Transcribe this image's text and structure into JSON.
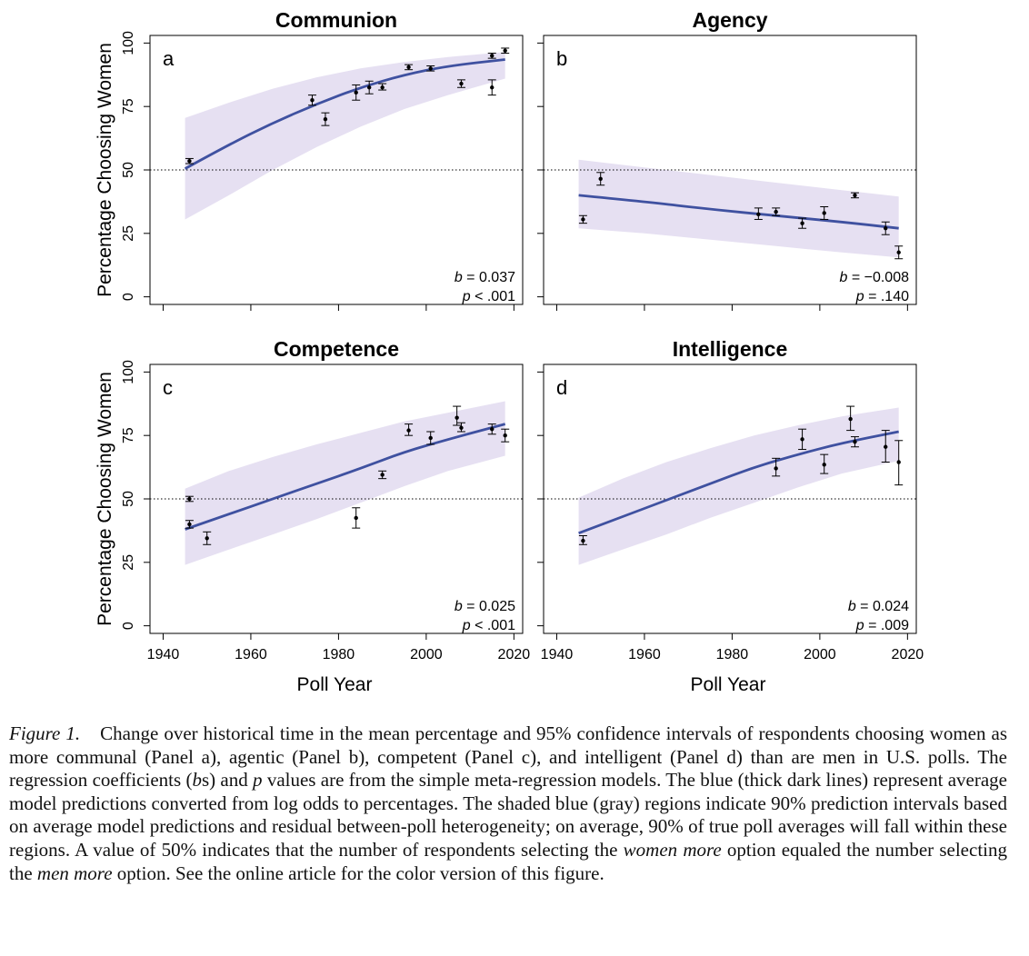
{
  "chart_data": [
    {
      "type": "scatter",
      "panel": "a",
      "title": "Communion",
      "xlabel": "Poll Year",
      "ylabel": "Percentage Choosing Women",
      "xlim": [
        1937,
        2022
      ],
      "ylim": [
        -3,
        103
      ],
      "xticks": [
        1940,
        1960,
        1980,
        2000,
        2020
      ],
      "yticks": [
        0,
        25,
        50,
        75,
        100
      ],
      "show_xtick_labels": false,
      "show_ylabel": true,
      "reference_line": 50,
      "points": [
        {
          "x": 1946,
          "y": 53.5,
          "lo": 52.5,
          "hi": 54.5
        },
        {
          "x": 1974,
          "y": 77.5,
          "lo": 75.5,
          "hi": 79.5
        },
        {
          "x": 1977,
          "y": 70,
          "lo": 67.5,
          "hi": 72.5
        },
        {
          "x": 1984,
          "y": 80.5,
          "lo": 77.5,
          "hi": 83.5
        },
        {
          "x": 1987,
          "y": 82.5,
          "lo": 80,
          "hi": 85
        },
        {
          "x": 1990,
          "y": 82.5,
          "lo": 81.5,
          "hi": 84
        },
        {
          "x": 1996,
          "y": 90.5,
          "lo": 89.5,
          "hi": 91.5
        },
        {
          "x": 2001,
          "y": 90,
          "lo": 89,
          "hi": 91
        },
        {
          "x": 2008,
          "y": 84,
          "lo": 82.5,
          "hi": 85.5
        },
        {
          "x": 2015,
          "y": 95,
          "lo": 94,
          "hi": 96
        },
        {
          "x": 2015,
          "y": 82.5,
          "lo": 79.5,
          "hi": 85.5
        },
        {
          "x": 2018,
          "y": 97,
          "lo": 96,
          "hi": 98
        }
      ],
      "fit": {
        "x": [
          1945,
          1955,
          1965,
          1975,
          1985,
          1995,
          2005,
          2018
        ],
        "y": [
          50.5,
          60,
          68.5,
          76,
          82.5,
          87.5,
          91,
          93.5
        ]
      },
      "band": {
        "x": [
          1945,
          1955,
          1965,
          1975,
          1985,
          1995,
          2005,
          2018
        ],
        "lo": [
          30.5,
          40,
          50,
          59,
          67,
          74,
          79.5,
          86
        ],
        "hi": [
          70.5,
          76.5,
          82,
          86.5,
          90,
          92.5,
          94.5,
          96.5
        ]
      },
      "b": "0.037",
      "p": "< .001"
    },
    {
      "type": "scatter",
      "panel": "b",
      "title": "Agency",
      "xlabel": "Poll Year",
      "ylabel": "",
      "xlim": [
        1937,
        2022
      ],
      "ylim": [
        -3,
        103
      ],
      "xticks": [
        1940,
        1960,
        1980,
        2000,
        2020
      ],
      "yticks": [
        0,
        25,
        50,
        75,
        100
      ],
      "show_xtick_labels": false,
      "show_ylabel": false,
      "reference_line": 50,
      "points": [
        {
          "x": 1946,
          "y": 30.5,
          "lo": 29,
          "hi": 32
        },
        {
          "x": 1950,
          "y": 46.5,
          "lo": 44,
          "hi": 49
        },
        {
          "x": 1986,
          "y": 32.5,
          "lo": 30.5,
          "hi": 35
        },
        {
          "x": 1990,
          "y": 33.5,
          "lo": 32,
          "hi": 35
        },
        {
          "x": 1996,
          "y": 29,
          "lo": 27,
          "hi": 31
        },
        {
          "x": 2001,
          "y": 33,
          "lo": 30.5,
          "hi": 35.5
        },
        {
          "x": 2008,
          "y": 40,
          "lo": 39,
          "hi": 41
        },
        {
          "x": 2015,
          "y": 27,
          "lo": 24.5,
          "hi": 29.5
        },
        {
          "x": 2018,
          "y": 17.5,
          "lo": 15,
          "hi": 20
        }
      ],
      "fit": {
        "x": [
          1945,
          1960,
          1975,
          1990,
          2005,
          2018
        ],
        "y": [
          40,
          37.5,
          34.5,
          32,
          29.5,
          27
        ]
      },
      "band": {
        "x": [
          1945,
          1960,
          1975,
          1990,
          2005,
          2018
        ],
        "lo": [
          27,
          25,
          22.5,
          20,
          17.5,
          15.5
        ],
        "hi": [
          54,
          51,
          48,
          45,
          42,
          39.5
        ]
      },
      "b": "−0.008",
      "p": ".140"
    },
    {
      "type": "scatter",
      "panel": "c",
      "title": "Competence",
      "xlabel": "Poll Year",
      "ylabel": "Percentage Choosing Women",
      "xlim": [
        1937,
        2022
      ],
      "ylim": [
        -3,
        103
      ],
      "xticks": [
        1940,
        1960,
        1980,
        2000,
        2020
      ],
      "yticks": [
        0,
        25,
        50,
        75,
        100
      ],
      "show_xtick_labels": true,
      "show_ylabel": true,
      "reference_line": 50,
      "points": [
        {
          "x": 1946,
          "y": 50,
          "lo": 49,
          "hi": 51
        },
        {
          "x": 1946,
          "y": 40,
          "lo": 38.5,
          "hi": 41.5
        },
        {
          "x": 1950,
          "y": 34.5,
          "lo": 32,
          "hi": 37
        },
        {
          "x": 1984,
          "y": 42.5,
          "lo": 38.5,
          "hi": 46.5
        },
        {
          "x": 1990,
          "y": 59.5,
          "lo": 58,
          "hi": 61
        },
        {
          "x": 1996,
          "y": 77,
          "lo": 75,
          "hi": 79.5
        },
        {
          "x": 2001,
          "y": 74,
          "lo": 71.5,
          "hi": 76.5
        },
        {
          "x": 2007,
          "y": 82,
          "lo": 79,
          "hi": 86.5
        },
        {
          "x": 2008,
          "y": 78,
          "lo": 76.5,
          "hi": 80
        },
        {
          "x": 2015,
          "y": 77.5,
          "lo": 75.5,
          "hi": 79.5
        },
        {
          "x": 2018,
          "y": 75,
          "lo": 72.5,
          "hi": 77.5
        }
      ],
      "fit": {
        "x": [
          1945,
          1955,
          1965,
          1975,
          1985,
          1995,
          2005,
          2018
        ],
        "y": [
          38,
          44,
          50,
          56,
          62,
          68.5,
          73.5,
          79.5
        ]
      },
      "band": {
        "x": [
          1945,
          1955,
          1965,
          1975,
          1985,
          1995,
          2005,
          2018
        ],
        "lo": [
          24,
          30,
          36,
          42,
          48.5,
          55,
          61,
          67
        ],
        "hi": [
          54,
          61,
          66.5,
          71.5,
          76,
          80.5,
          84,
          88.5
        ]
      },
      "b": "0.025",
      "p": "< .001"
    },
    {
      "type": "scatter",
      "panel": "d",
      "title": "Intelligence",
      "xlabel": "Poll Year",
      "ylabel": "",
      "xlim": [
        1937,
        2022
      ],
      "ylim": [
        -3,
        103
      ],
      "xticks": [
        1940,
        1960,
        1980,
        2000,
        2020
      ],
      "yticks": [
        0,
        25,
        50,
        75,
        100
      ],
      "show_xtick_labels": true,
      "show_ylabel": false,
      "reference_line": 50,
      "points": [
        {
          "x": 1946,
          "y": 33.5,
          "lo": 32,
          "hi": 35.5
        },
        {
          "x": 1990,
          "y": 62,
          "lo": 59,
          "hi": 66
        },
        {
          "x": 1996,
          "y": 73.5,
          "lo": 69.5,
          "hi": 77.5
        },
        {
          "x": 2001,
          "y": 63.5,
          "lo": 60,
          "hi": 67.5
        },
        {
          "x": 2007,
          "y": 81.5,
          "lo": 77,
          "hi": 86.5
        },
        {
          "x": 2008,
          "y": 72.5,
          "lo": 70.5,
          "hi": 74.5
        },
        {
          "x": 2015,
          "y": 70.5,
          "lo": 64.5,
          "hi": 77
        },
        {
          "x": 2018,
          "y": 64.5,
          "lo": 55.5,
          "hi": 73
        }
      ],
      "fit": {
        "x": [
          1945,
          1955,
          1965,
          1975,
          1985,
          1995,
          2005,
          2018
        ],
        "y": [
          36.5,
          43,
          49.5,
          56,
          62.5,
          67.5,
          72,
          76.5
        ]
      },
      "band": {
        "x": [
          1945,
          1955,
          1965,
          1975,
          1985,
          1995,
          2005,
          2018
        ],
        "lo": [
          24,
          30,
          36,
          42.5,
          48.5,
          54.5,
          60,
          65
        ],
        "hi": [
          50.5,
          58,
          64.5,
          70,
          75,
          79,
          82.5,
          86
        ]
      },
      "b": "0.024",
      "p": ".009"
    }
  ],
  "caption": {
    "label": "Figure 1.",
    "segments": [
      {
        "t": "Change over historical time in the mean percentage and 95% confidence intervals of respondents choosing women as more communal (Panel a), agentic (Panel b), competent (Panel c), and intelligent (Panel d) than are men in U.S. polls. The regression coefficients ("
      },
      {
        "t": "b",
        "i": true
      },
      {
        "t": "s) and "
      },
      {
        "t": "p",
        "i": true
      },
      {
        "t": " values are from the simple meta-regression models. The blue (thick dark lines) represent average model predictions converted from log odds to percentages. The shaded blue (gray) regions indicate 90% prediction intervals based on average model predictions and residual between-poll heterogeneity; on average, 90% of true poll averages will fall within these regions. A value of 50% indicates that the number of respondents selecting the "
      },
      {
        "t": "women more",
        "i": true
      },
      {
        "t": " option equaled the number selecting the "
      },
      {
        "t": "men more",
        "i": true
      },
      {
        "t": " option. See the online article for the color version of this figure."
      }
    ]
  },
  "colors": {
    "fit_line": "#3f51a0",
    "band": "#e6e0f2",
    "axis": "#000000"
  }
}
